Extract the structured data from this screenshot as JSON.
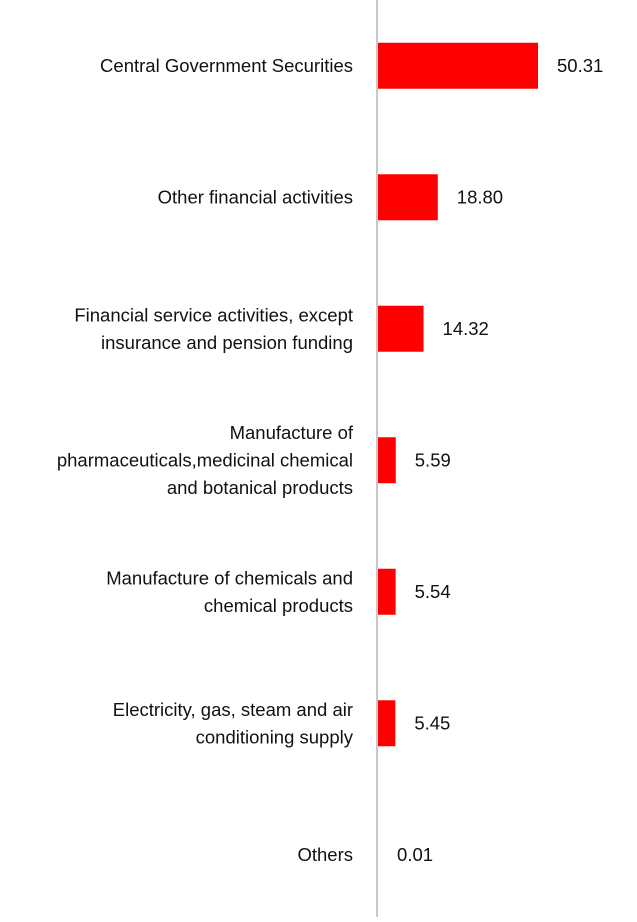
{
  "chart_data": {
    "type": "bar",
    "orientation": "horizontal",
    "categories": [
      "Central Government Securities",
      "Other financial activities",
      "Financial service activities, except insurance and pension funding",
      "Manufacture of pharmaceuticals,medicinal chemical and botanical products",
      "Manufacture of chemicals and chemical products",
      "Electricity, gas, steam and air conditioning supply",
      "Others"
    ],
    "category_lines": [
      [
        "Central Government Securities"
      ],
      [
        "Other financial activities"
      ],
      [
        "Financial service activities, except",
        "insurance and pension funding"
      ],
      [
        "Manufacture of",
        "pharmaceuticals,medicinal chemical",
        "and botanical products"
      ],
      [
        "Manufacture of chemicals and",
        "chemical products"
      ],
      [
        "Electricity, gas, steam and air",
        "conditioning supply"
      ],
      [
        "Others"
      ]
    ],
    "values": [
      50.31,
      18.8,
      14.32,
      5.59,
      5.54,
      5.45,
      0.01
    ],
    "value_labels": [
      "50.31",
      "18.80",
      "14.32",
      "5.59",
      "5.54",
      "5.45",
      "0.01"
    ],
    "xlim": [
      0,
      50.31
    ],
    "grid": false,
    "legend": "none",
    "colors": {
      "bar": "#ff0000",
      "axis": "#c8c8c8",
      "text": "#111111"
    }
  }
}
